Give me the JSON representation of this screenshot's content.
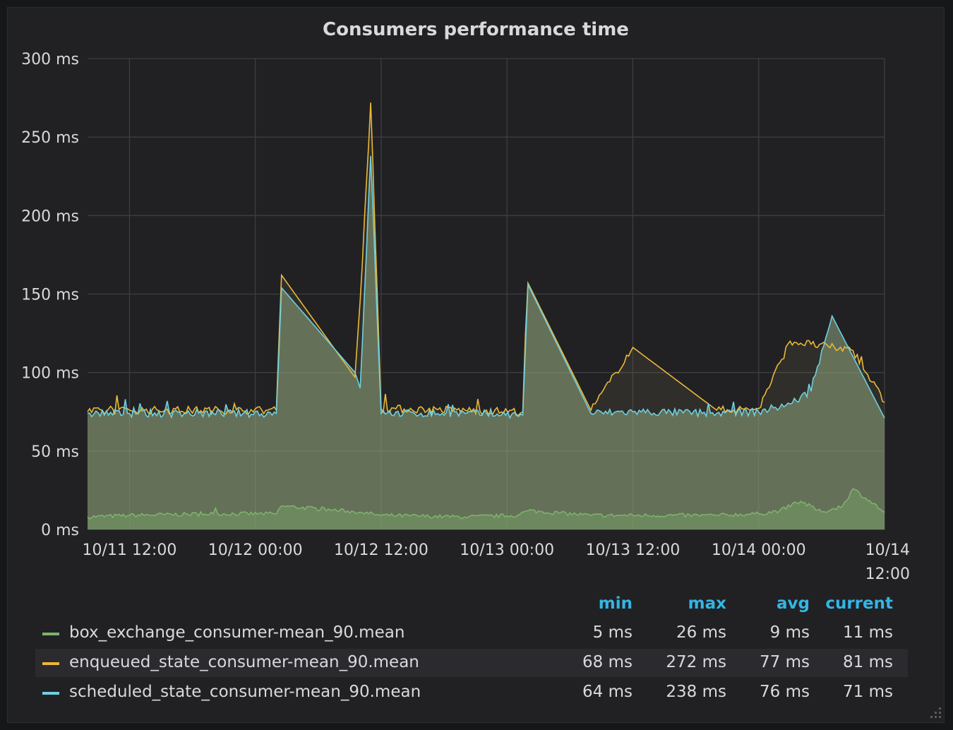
{
  "panel": {
    "title": "Consumers performance time"
  },
  "legend": {
    "headers": {
      "min": "min",
      "max": "max",
      "avg": "avg",
      "current": "current"
    },
    "rows": [
      {
        "name": "box_exchange_consumer-mean_90.mean",
        "color": "#7eb26d",
        "min": "5 ms",
        "max": "26 ms",
        "avg": "9 ms",
        "current": "11 ms"
      },
      {
        "name": "enqueued_state_consumer-mean_90.mean",
        "color": "#eab839",
        "min": "68 ms",
        "max": "272 ms",
        "avg": "77 ms",
        "current": "81 ms"
      },
      {
        "name": "scheduled_state_consumer-mean_90.mean",
        "color": "#6ed0e0",
        "min": "64 ms",
        "max": "238 ms",
        "avg": "76 ms",
        "current": "71 ms"
      }
    ]
  },
  "chart_data": {
    "type": "area",
    "title": "Consumers performance time",
    "xlabel": "",
    "ylabel": "",
    "ylim": [
      0,
      300
    ],
    "y_unit": "ms",
    "y_ticks": [
      0,
      50,
      100,
      150,
      200,
      250,
      300
    ],
    "y_tick_labels": [
      "0 ms",
      "50 ms",
      "100 ms",
      "150 ms",
      "200 ms",
      "250 ms",
      "300 ms"
    ],
    "xlim": [
      "10/11 08:00",
      "10/14 12:00"
    ],
    "x_ticks": [
      "10/11 12:00",
      "10/12 00:00",
      "10/12 12:00",
      "10/13 00:00",
      "10/13 12:00",
      "10/14 00:00",
      "10/14 12:00"
    ],
    "x_tick_labels": [
      "10/11 12:00",
      "10/12 00:00",
      "10/12 12:00",
      "10/13 00:00",
      "10/13 12:00",
      "10/14 00:00",
      "10/14\n12:00"
    ],
    "grid": true,
    "legend_position": "bottom",
    "series": [
      {
        "name": "box_exchange_consumer-mean_90.mean",
        "color": "#7eb26d",
        "x": [
          "10/11 08:00",
          "10/11 12:00",
          "10/11 20:00",
          "10/12 02:00",
          "10/12 02:30",
          "10/12 10:00",
          "10/12 12:00",
          "10/12 20:00",
          "10/13 01:00",
          "10/13 02:00",
          "10/13 08:00",
          "10/13 12:00",
          "10/13 20:00",
          "10/14 00:00",
          "10/14 02:00",
          "10/14 04:00",
          "10/14 06:00",
          "10/14 08:00",
          "10/14 09:00",
          "10/14 12:00"
        ],
        "y": [
          8,
          9,
          10,
          10,
          15,
          11,
          9,
          8,
          9,
          12,
          9,
          9,
          9,
          10,
          12,
          18,
          11,
          15,
          26,
          11
        ]
      },
      {
        "name": "enqueued_state_consumer-mean_90.mean",
        "color": "#eab839",
        "x": [
          "10/11 08:00",
          "10/11 12:00",
          "10/11 20:00",
          "10/12 02:00",
          "10/12 02:30",
          "10/12 09:30",
          "10/12 10:00",
          "10/12 11:00",
          "10/12 12:00",
          "10/12 20:00",
          "10/13 01:30",
          "10/13 02:00",
          "10/13 08:00",
          "10/13 12:00",
          "10/13 20:00",
          "10/14 00:00",
          "10/14 03:00",
          "10/14 05:00",
          "10/14 09:00",
          "10/14 12:00"
        ],
        "y": [
          75,
          76,
          76,
          76,
          162,
          97,
          146,
          272,
          77,
          76,
          75,
          157,
          76,
          116,
          76,
          77,
          120,
          118,
          114,
          81
        ]
      },
      {
        "name": "scheduled_state_consumer-mean_90.mean",
        "color": "#6ed0e0",
        "x": [
          "10/11 08:00",
          "10/11 12:00",
          "10/11 20:00",
          "10/12 02:00",
          "10/12 02:30",
          "10/12 09:30",
          "10/12 10:00",
          "10/12 11:00",
          "10/12 12:00",
          "10/12 20:00",
          "10/13 01:30",
          "10/13 02:00",
          "10/13 08:00",
          "10/13 12:00",
          "10/13 20:00",
          "10/14 00:00",
          "10/14 03:00",
          "10/14 05:00",
          "10/14 07:00",
          "10/14 12:00"
        ],
        "y": [
          74,
          74,
          74,
          74,
          154,
          100,
          90,
          238,
          74,
          74,
          73,
          156,
          74,
          75,
          74,
          75,
          80,
          88,
          136,
          71
        ]
      }
    ]
  }
}
